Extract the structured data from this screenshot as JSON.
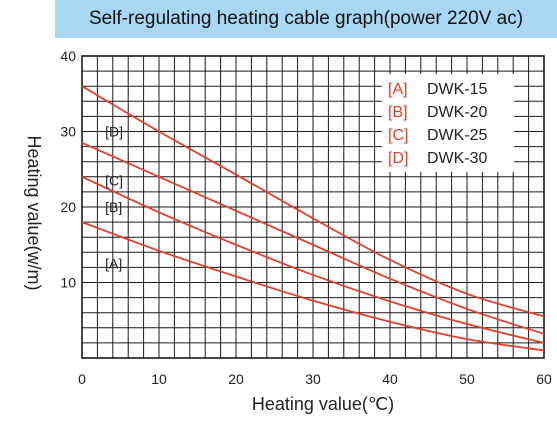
{
  "header": {
    "title": "Self-regulating heating cable graph(power 220V ac)"
  },
  "colors": {
    "title_bg": "#a9d6f2",
    "curve": "#e0402e",
    "grid": "#1a1a1a",
    "legend_key": "#e0402e"
  },
  "chart_data": {
    "type": "line",
    "title": "Self-regulating heating cable graph(power 220V ac)",
    "xlabel": "Heating value(℃)",
    "ylabel": "Heating value(w/m)",
    "xlim": [
      0,
      60
    ],
    "ylim": [
      0,
      40
    ],
    "xticks": [
      0,
      10,
      20,
      30,
      40,
      50,
      60
    ],
    "yticks": [
      10,
      20,
      30,
      40
    ],
    "grid": true,
    "legend_position": "top-right",
    "legend": [
      {
        "key": "[A]",
        "name": "DWK-15"
      },
      {
        "key": "[B]",
        "name": "DWK-20"
      },
      {
        "key": "[C]",
        "name": "DWK-25"
      },
      {
        "key": "[D]",
        "name": "DWK-30"
      }
    ],
    "curve_labels": [
      "[A]",
      "[B]",
      "[C]",
      "[D]"
    ],
    "series": [
      {
        "name": "DWK-15",
        "x": [
          0,
          10,
          20,
          30,
          40,
          50,
          60
        ],
        "y": [
          18,
          14.2,
          10.8,
          7.6,
          4.8,
          2.5,
          1.0
        ]
      },
      {
        "name": "DWK-20",
        "x": [
          0,
          10,
          20,
          30,
          40,
          50,
          60
        ],
        "y": [
          24,
          19.3,
          15,
          11,
          7.5,
          4.5,
          2.0
        ]
      },
      {
        "name": "DWK-25",
        "x": [
          0,
          10,
          20,
          30,
          40,
          50,
          60
        ],
        "y": [
          28.5,
          24,
          19.5,
          15,
          10.5,
          6.5,
          3.2
        ]
      },
      {
        "name": "DWK-30",
        "x": [
          0,
          10,
          20,
          30,
          40,
          50,
          60
        ],
        "y": [
          36,
          30,
          24.3,
          18.5,
          13,
          8.5,
          5.5
        ]
      }
    ]
  }
}
